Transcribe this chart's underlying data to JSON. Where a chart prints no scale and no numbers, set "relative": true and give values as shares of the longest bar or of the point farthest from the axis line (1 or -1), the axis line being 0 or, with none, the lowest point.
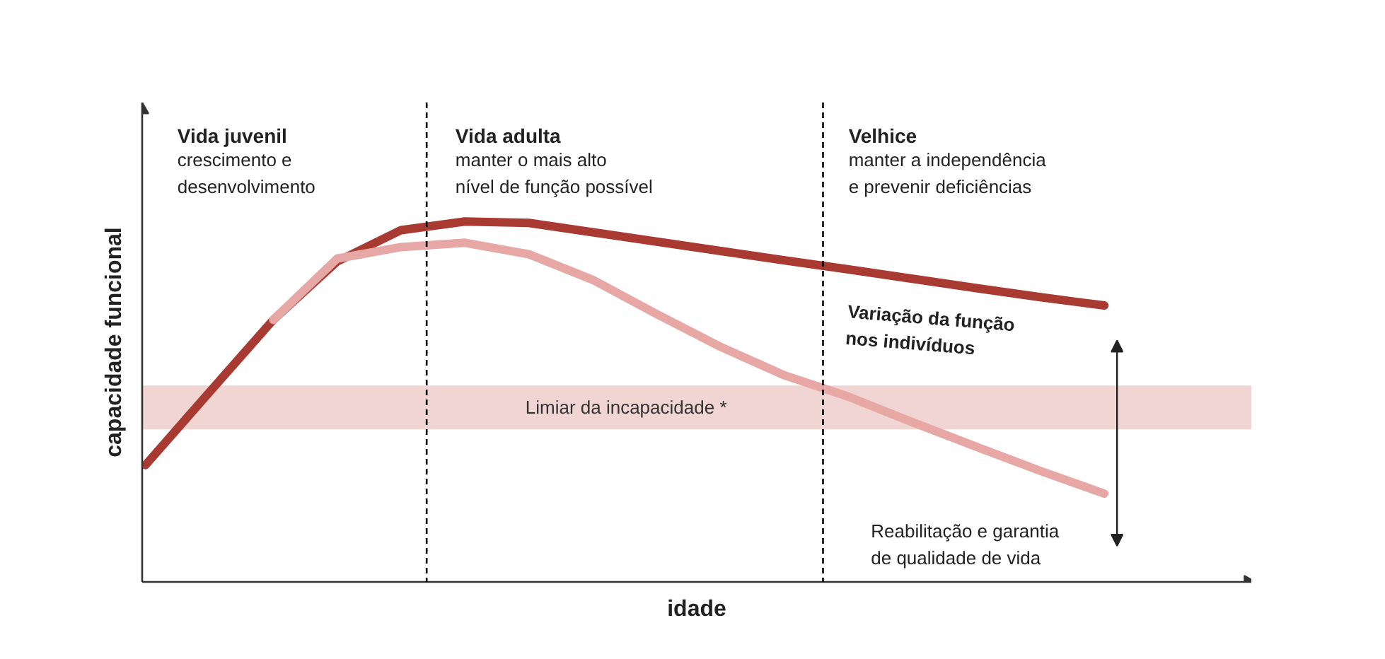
{
  "chart_data": {
    "type": "line",
    "relative": true,
    "xlabel": "idade",
    "ylabel": "capacidade funcional",
    "categories": [
      null,
      null,
      null,
      null,
      null,
      null,
      null,
      null,
      null,
      null,
      null,
      null,
      null,
      null,
      null,
      null
    ],
    "series": [
      {
        "color": "#a83a32",
        "values": [
          0.324,
          0.526,
          0.727,
          0.889,
          0.976,
          1,
          0.996,
          0.97,
          0.944,
          0.918,
          0.892,
          0.867,
          0.841,
          0.815,
          0.79,
          0.767
        ]
      },
      {
        "color": "#e6a7a5",
        "values": [
          null,
          null,
          0.727,
          0.897,
          0.929,
          0.941,
          0.909,
          0.838,
          0.743,
          0.652,
          0.573,
          0.514,
          0.443,
          0.375,
          0.308,
          0.245
        ]
      }
    ],
    "bands": [
      {
        "axis": "y",
        "from": 0.423,
        "to": 0.545,
        "label": "Limiar da incapacidade *",
        "color": "#f0d5d3"
      }
    ],
    "annotations": [
      "Vida juvenil",
      "crescimento e\ndesenvolvimento",
      "Vida adulta",
      "manter o mais alto\nnível de função possível",
      "Velhice",
      "manter a independência\ne prevenir deficiências",
      "Variação da função\nnos indivíduos",
      "Reabilitação e garantia\nde qualidade de vida"
    ],
    "tick_labels": false,
    "grid": false,
    "marker": "none",
    "line_style": "solid"
  }
}
